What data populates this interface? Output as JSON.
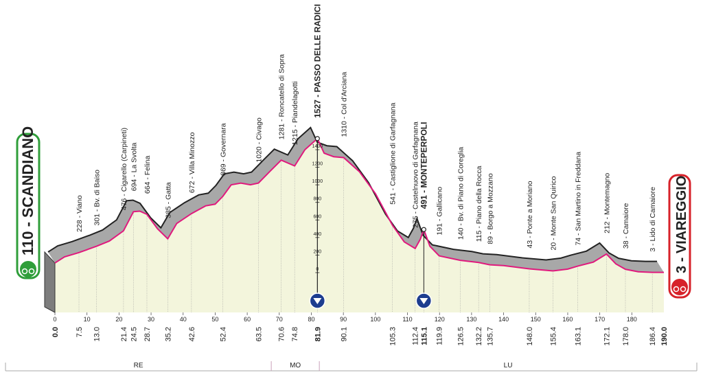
{
  "chart_data": {
    "type": "elevation-profile",
    "start": "110 - SCANDIANO",
    "finish": "3 - VIAREGGIO",
    "xlim": [
      0,
      190
    ],
    "ylim": [
      0,
      1400
    ],
    "xticks": [
      0,
      10,
      20,
      30,
      40,
      50,
      60,
      70,
      80,
      90,
      100,
      110,
      120,
      130,
      140,
      150,
      160,
      170,
      180
    ],
    "yticks": [
      0,
      200,
      400,
      600,
      800,
      1000,
      1200,
      1400
    ],
    "x": [
      0,
      3,
      7.5,
      13,
      17,
      21.4,
      24.5,
      26.5,
      28.7,
      32,
      35.2,
      38,
      42.6,
      47,
      50,
      52.4,
      55,
      58,
      61,
      63.5,
      67,
      70.6,
      74.8,
      78,
      81.9,
      84,
      87,
      90.1,
      95,
      100,
      105.3,
      109,
      112.4,
      114,
      115.1,
      117,
      119.9,
      126.5,
      132.2,
      135.7,
      140,
      148,
      155.4,
      160,
      163.1,
      168,
      172.1,
      175,
      178,
      182,
      186.4,
      190
    ],
    "values": [
      110,
      180,
      228,
      301,
      360,
      476,
      694,
      700,
      664,
      500,
      385,
      560,
      672,
      760,
      780,
      869,
      1000,
      1020,
      1000,
      1020,
      1150,
      1281,
      1215,
      1400,
      1527,
      1360,
      1320,
      1310,
      1150,
      900,
      541,
      350,
      275,
      380,
      491,
      300,
      191,
      140,
      115,
      89,
      80,
      43,
      20,
      40,
      74,
      120,
      212,
      100,
      38,
      10,
      3,
      3
    ],
    "waypoints": [
      {
        "km": {
          "value": 0,
          "label": "0.0"
        },
        "bold": true
      },
      {
        "name": "228 - Viano",
        "km": {
          "value": 7.5,
          "label": "7.5"
        }
      },
      {
        "name": "301 - Bv. di Baiso",
        "km": {
          "value": 13,
          "label": "13.0"
        }
      },
      {
        "name": "476 - Cigarello (Carpineti)",
        "km": {
          "value": 21.4,
          "label": "21.4"
        }
      },
      {
        "name": "694 - La Svolta",
        "km": {
          "value": 24.5,
          "label": "24.5"
        }
      },
      {
        "name": "664 - Felina",
        "km": {
          "value": 28.7,
          "label": "28.7"
        }
      },
      {
        "name": "385 - Gatta",
        "km": {
          "value": 35.2,
          "label": "35.2"
        }
      },
      {
        "name": "672 - Villa Minozzo",
        "km": {
          "value": 42.6,
          "label": "42.6"
        }
      },
      {
        "name": "869 - Governara",
        "km": {
          "value": 52.4,
          "label": "52.4"
        }
      },
      {
        "name": "1020 - Civago",
        "km": {
          "value": 63.5,
          "label": "63.5"
        }
      },
      {
        "name": "1281 - Roncatello di Sopra",
        "km": {
          "value": 70.6,
          "label": "70.6"
        }
      },
      {
        "name": "1215 - Piandelagotti",
        "km": {
          "value": 74.8,
          "label": "74.8"
        }
      },
      {
        "name": "1527 - PASSO DELLE RADICI",
        "km": {
          "value": 81.9,
          "label": "81.9"
        },
        "bold": true,
        "summit": true
      },
      {
        "name": "1310 - Col d'Arciana",
        "km": {
          "value": 90.1,
          "label": "90.1"
        }
      },
      {
        "name": "541 - Castiglione di Garfagnana",
        "km": {
          "value": 105.3,
          "label": "105.3"
        }
      },
      {
        "name": "275 - Castelnuovo di Garfagnana",
        "km": {
          "value": 112.4,
          "label": "112.4"
        }
      },
      {
        "name": "491 - MONTEPERPOLI",
        "km": {
          "value": 115.1,
          "label": "115.1"
        },
        "bold": true,
        "summit": true
      },
      {
        "name": "191 - Gallicano",
        "km": {
          "value": 119.9,
          "label": "119.9"
        }
      },
      {
        "name": "140 - Bv. di Piano di Coreglia",
        "km": {
          "value": 126.5,
          "label": "126.5"
        }
      },
      {
        "name": "115 - Piano della Rocca",
        "km": {
          "value": 132.2,
          "label": "132.2"
        }
      },
      {
        "name": "89 - Borgo a Mozzano",
        "km": {
          "value": 135.7,
          "label": "135.7"
        }
      },
      {
        "name": "43 - Ponte a Moriano",
        "km": {
          "value": 148,
          "label": "148.0"
        }
      },
      {
        "name": "20 - Monte San Quirico",
        "km": {
          "value": 155.4,
          "label": "155.4"
        }
      },
      {
        "name": "74 - San Martino in Freddana",
        "km": {
          "value": 163.1,
          "label": "163.1"
        }
      },
      {
        "name": "212 - Montemagno",
        "km": {
          "value": 172.1,
          "label": "172.1"
        }
      },
      {
        "name": "38 - Camaiore",
        "km": {
          "value": 178,
          "label": "178.0"
        }
      },
      {
        "name": "3 - Lido di Camaiore",
        "km": {
          "value": 186.4,
          "label": "186.4"
        }
      },
      {
        "km": {
          "value": 190,
          "label": "190.0"
        },
        "bold": true
      }
    ],
    "regions": [
      {
        "name": "RE",
        "to": 67.5
      },
      {
        "name": "MO",
        "to": 82.5
      },
      {
        "name": "LU"
      }
    ]
  }
}
